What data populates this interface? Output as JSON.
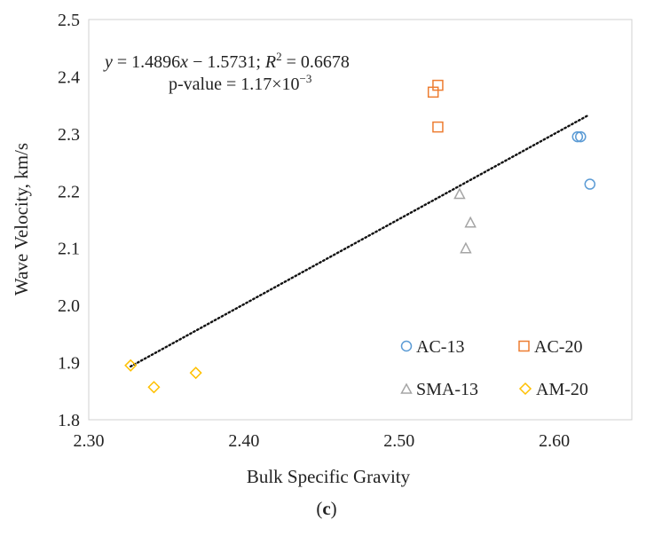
{
  "chart_data": {
    "type": "scatter",
    "title": "",
    "xlabel": "Bulk Specific Gravity",
    "ylabel": "Wave Velocity, km/s",
    "xlim": [
      2.3,
      2.65
    ],
    "ylim": [
      1.8,
      2.5
    ],
    "xticks": [
      2.3,
      2.4,
      2.5,
      2.6
    ],
    "xtick_labels": [
      "2.30",
      "2.40",
      "2.50",
      "2.60"
    ],
    "yticks": [
      1.8,
      1.9,
      2.0,
      2.1,
      2.2,
      2.3,
      2.4,
      2.5
    ],
    "ytick_labels": [
      "1.8",
      "1.9",
      "2.0",
      "2.1",
      "2.2",
      "2.3",
      "2.4",
      "2.5"
    ],
    "grid": false,
    "legend_position": "bottom-right",
    "series": [
      {
        "name": "AC-13",
        "marker": "circle",
        "color": "#5b9bd5",
        "points": [
          [
            2.615,
            2.295
          ],
          [
            2.617,
            2.295
          ],
          [
            2.623,
            2.212
          ]
        ]
      },
      {
        "name": "AC-20",
        "marker": "square",
        "color": "#ed7d31",
        "points": [
          [
            2.525,
            2.385
          ],
          [
            2.522,
            2.373
          ],
          [
            2.525,
            2.312
          ]
        ]
      },
      {
        "name": "SMA-13",
        "marker": "triangle",
        "color": "#a5a5a5",
        "points": [
          [
            2.539,
            2.195
          ],
          [
            2.546,
            2.145
          ],
          [
            2.543,
            2.1
          ]
        ]
      },
      {
        "name": "AM-20",
        "marker": "diamond",
        "color": "#ffc000",
        "points": [
          [
            2.327,
            1.895
          ],
          [
            2.342,
            1.857
          ],
          [
            2.369,
            1.882
          ]
        ]
      }
    ],
    "trendline": {
      "x_start": 2.327,
      "x_end": 2.622,
      "slope": 1.4896,
      "intercept": -1.5731,
      "style": "dotted",
      "color": "#111111"
    },
    "annotations": {
      "equation": {
        "y": "y",
        "eq1": " = 1.4896",
        "x": "x",
        "eq2": " − 1.5731; ",
        "r": "R",
        "sup2": "2",
        "eq3": " = 0.6678"
      },
      "pvalue": {
        "text": "p-value = 1.17×10",
        "exponent": "−3"
      }
    }
  },
  "caption": {
    "open": "(",
    "letter": "c",
    "close": ")"
  }
}
